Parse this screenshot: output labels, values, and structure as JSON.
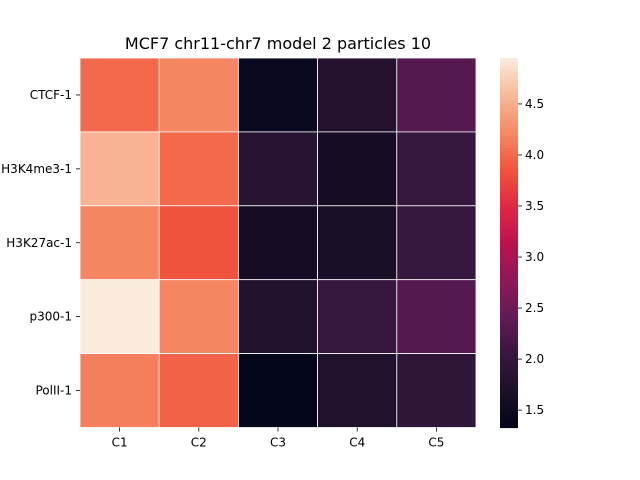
{
  "chart_data": {
    "type": "heatmap",
    "title": "MCF7 chr11-chr7 model 2 particles 10",
    "rows": [
      "CTCF-1",
      "H3K4me3-1",
      "H3K27ac-1",
      "p300-1",
      "PolII-1"
    ],
    "columns": [
      "C1",
      "C2",
      "C3",
      "C4",
      "C5"
    ],
    "values": [
      [
        4.0,
        4.2,
        1.45,
        1.8,
        2.3
      ],
      [
        4.55,
        4.0,
        1.85,
        1.6,
        2.05
      ],
      [
        4.2,
        3.85,
        1.6,
        1.65,
        2.05
      ],
      [
        4.95,
        4.2,
        1.75,
        2.05,
        2.3
      ],
      [
        4.15,
        3.95,
        1.35,
        1.75,
        1.95
      ]
    ],
    "colormap": "rocket",
    "colorbar": {
      "range": [
        1.33,
        4.95
      ],
      "ticks": [
        "1.5",
        "2.0",
        "2.5",
        "3.0",
        "3.5",
        "4.0",
        "4.5"
      ]
    },
    "grid": false,
    "cell_border_color": "#ffffff"
  }
}
